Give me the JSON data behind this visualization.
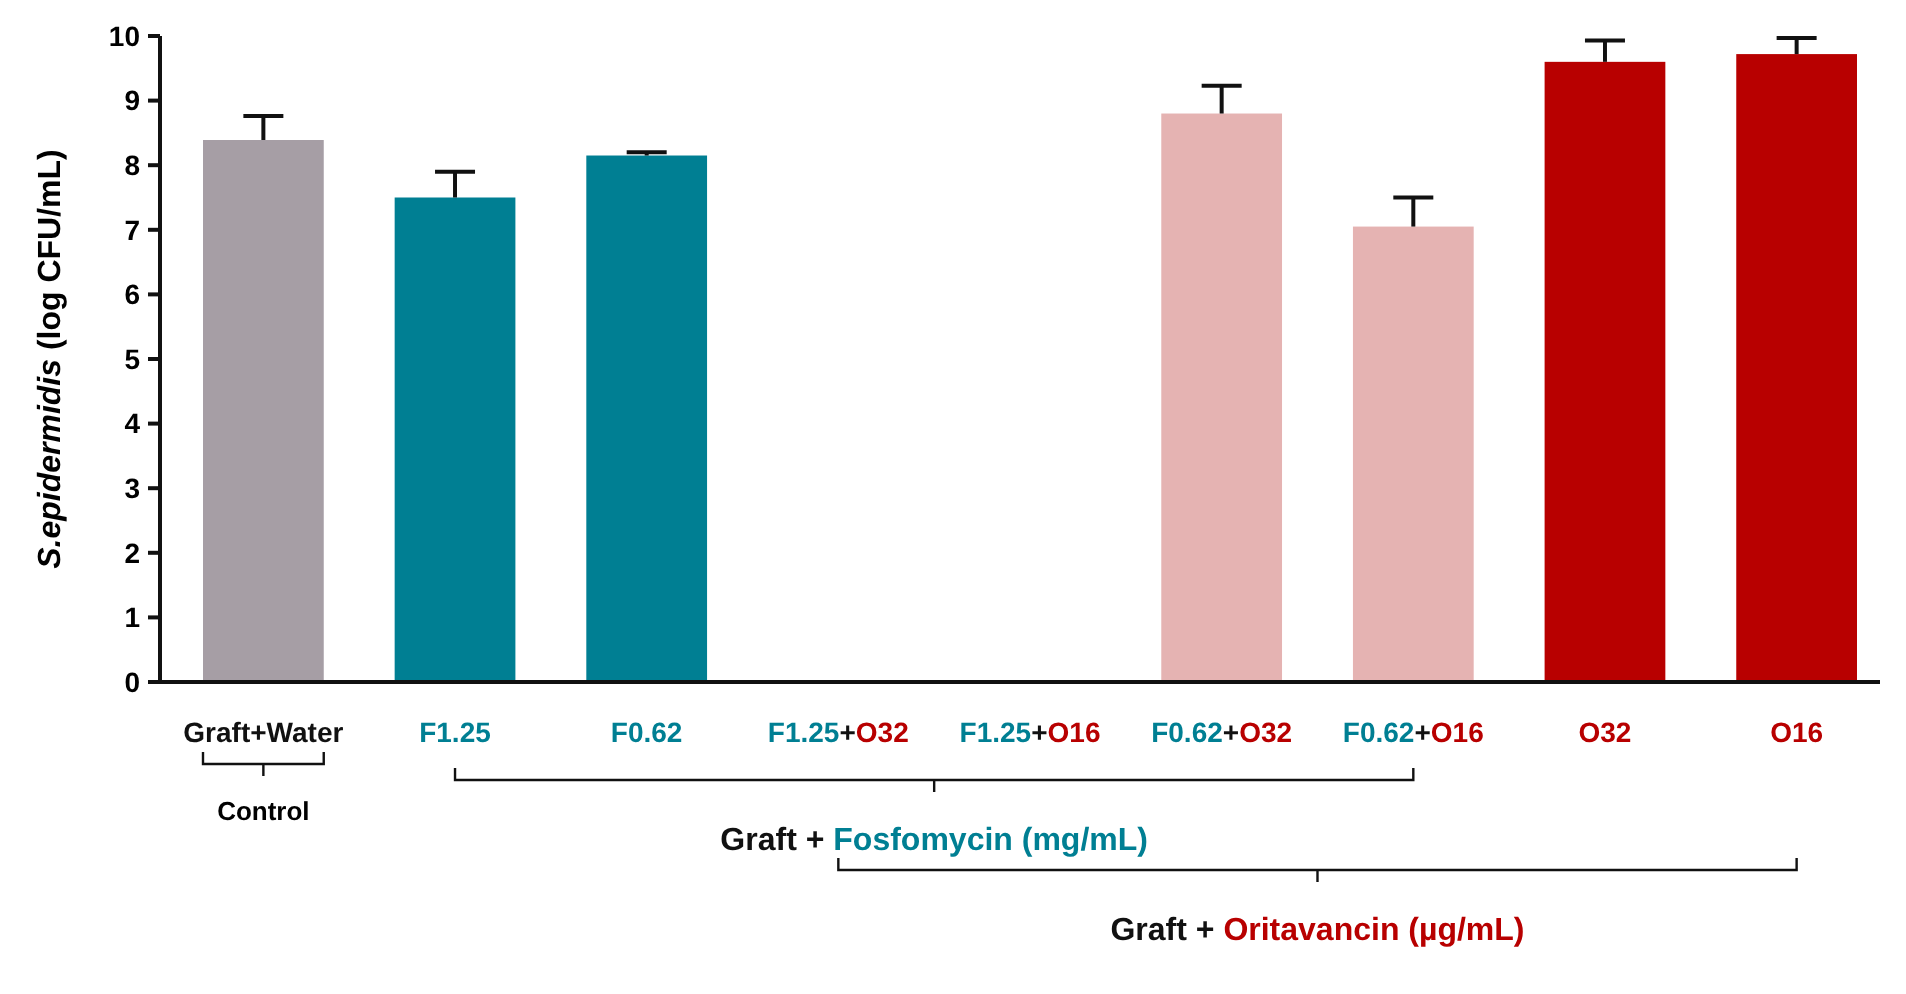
{
  "chart_data": {
    "type": "bar",
    "ylabel": "S.epidermidis (log CFU/mL)",
    "categories": [
      "Graft+Water",
      "F1.25",
      "F0.62",
      "F1.25+O32",
      "F1.25+O16",
      "F0.62+O32",
      "F0.62+O16",
      "O32",
      "O16"
    ],
    "values": [
      8.39,
      7.5,
      8.15,
      0,
      0,
      8.8,
      7.05,
      9.6,
      9.72
    ],
    "errors": [
      0.37,
      0.4,
      0.05,
      null,
      null,
      0.43,
      0.45,
      0.33,
      0.25
    ],
    "colors": [
      "#a69ea5",
      "#007f93",
      "#007f93",
      "#007f93",
      "#007f93",
      "#e5b3b2",
      "#e5b3b2",
      "#b80000",
      "#b80000"
    ],
    "ylim": [
      0,
      10
    ],
    "yticks": [
      0,
      1,
      2,
      3,
      4,
      5,
      6,
      7,
      8,
      9,
      10
    ],
    "annotations": [
      "Control",
      "Graft + Fosfomycin (mg/mL)",
      "Graft + Oritavancin (µg/mL)"
    ]
  }
}
